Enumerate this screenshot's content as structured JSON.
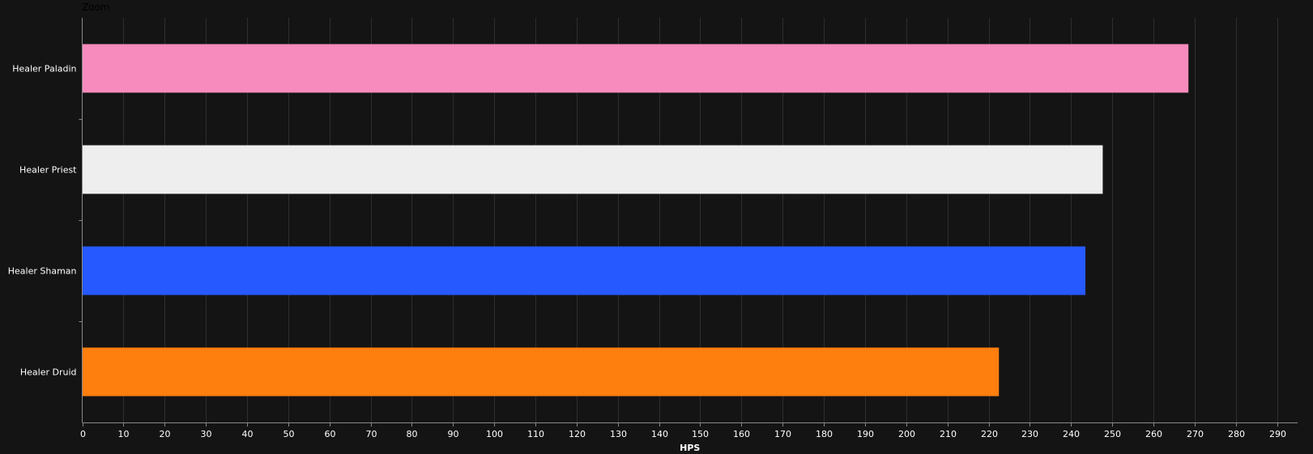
{
  "toolbar": {
    "zoom_label": "Zoom"
  },
  "colors": {
    "background": "#141414",
    "gridline": "#2e2e2e",
    "axis": "#8a8a8a",
    "text": "#ffffff"
  },
  "chart_data": {
    "type": "bar",
    "orientation": "horizontal",
    "title": "",
    "xlabel": "HPS",
    "ylabel": "",
    "categories": [
      "Healer Paladin",
      "Healer Priest",
      "Healer Shaman",
      "Healer Druid"
    ],
    "values": [
      268.5,
      247.7,
      243.5,
      222.5
    ],
    "bar_colors": [
      "#f78bbd",
      "#eeeeee",
      "#2659ff",
      "#ff7f0e"
    ],
    "xlim": [
      0,
      295
    ],
    "x_ticks": [
      0,
      10,
      20,
      30,
      40,
      50,
      60,
      70,
      80,
      90,
      100,
      110,
      120,
      130,
      140,
      150,
      160,
      170,
      180,
      190,
      200,
      210,
      220,
      230,
      240,
      250,
      260,
      270,
      280,
      290
    ],
    "x_tick_labels": [
      "0",
      "10",
      "20",
      "30",
      "40",
      "50",
      "60",
      "70",
      "80",
      "90",
      "100",
      "110",
      "120",
      "130",
      "140",
      "150",
      "160",
      "170",
      "180",
      "190",
      "200",
      "210",
      "220",
      "230",
      "240",
      "250",
      "260",
      "270",
      "280",
      "290"
    ],
    "grid": true,
    "legend": "none"
  }
}
